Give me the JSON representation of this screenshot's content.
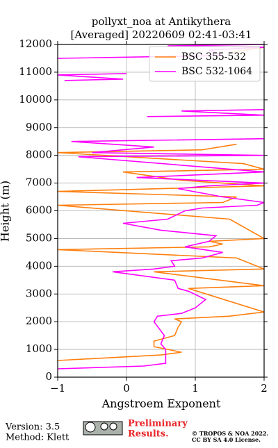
{
  "chart_data": {
    "type": "line",
    "title": "pollyxt_noa at Antikythera",
    "subtitle": "[Averaged] 20220609 02:41-03:41",
    "x_label": "Angstroem Exponent",
    "y_label": "Height (m)",
    "xlim": [
      -1,
      2
    ],
    "ylim": [
      0,
      12000
    ],
    "xticks": [
      {
        "value": -1,
        "label": "−1"
      },
      0,
      1,
      2
    ],
    "yticks": [
      0,
      1000,
      2000,
      3000,
      4000,
      5000,
      6000,
      7000,
      8000,
      9000,
      10000,
      11000,
      12000
    ],
    "grid": true,
    "legend": "upper right",
    "series": [
      {
        "name": "BSC 355-532",
        "color": "#ff7f0e",
        "x": [
          -1,
          0.5,
          0.8,
          0.4,
          0.4,
          0.7,
          0.75,
          0.8,
          0.7,
          1.5,
          2,
          0.9,
          2,
          0.4,
          2,
          1.6,
          -1,
          1.2,
          1.4,
          1.2,
          2,
          1.5,
          -1,
          1.4,
          1.6,
          -1,
          2,
          0.8,
          -0.05,
          2,
          1.7,
          -1,
          1.1,
          1.6,
          null,
          1.5,
          2
        ],
        "y": [
          600,
          800,
          900,
          1100,
          1300,
          1500,
          1800,
          2000,
          2100,
          2200,
          2350,
          3200,
          3300,
          3800,
          3900,
          4300,
          4600,
          4700,
          4800,
          4900,
          5000,
          5700,
          6200,
          6300,
          6500,
          6700,
          6900,
          7100,
          7400,
          7500,
          7700,
          8100,
          8200,
          8400,
          null,
          11700,
          11900
        ]
      },
      {
        "name": "BSC 532-1064",
        "color": "#ff00ff",
        "x": [
          -1,
          0.25,
          0.57,
          0.57,
          0.5,
          0.55,
          0.4,
          0.45,
          0.8,
          1.0,
          1.15,
          0.9,
          0.75,
          0.7,
          -0.2,
          0.4,
          0.7,
          0.65,
          1.1,
          1.4,
          0.85,
          1.2,
          1.3,
          0.5,
          -0.05,
          0.6,
          0.85,
          1.1,
          1.9,
          2,
          1.4,
          0.75,
          1.2,
          2,
          0.15,
          2,
          -0.7,
          2,
          -0.5,
          0.4,
          -0.8,
          2,
          null,
          0.3,
          2,
          0.8,
          2,
          null,
          -0.9,
          -0.05,
          -1,
          0,
          null,
          -1,
          1.4,
          1.2,
          2,
          0.6,
          2
        ],
        "y": [
          300,
          400,
          500,
          1000,
          1200,
          1500,
          2000,
          2200,
          2300,
          2500,
          2800,
          3100,
          3200,
          3500,
          3800,
          3900,
          4000,
          4200,
          4300,
          4500,
          4700,
          4900,
          5100,
          5300,
          5550,
          5700,
          6000,
          6100,
          6200,
          6300,
          6500,
          6800,
          6900,
          7000,
          7200,
          7400,
          7950,
          8000,
          8100,
          8300,
          8500,
          8600,
          null,
          9400,
          9450,
          9600,
          9650,
          null,
          10700,
          10750,
          10900,
          10950,
          null,
          11500,
          11600,
          11800,
          11900,
          11950,
          12000
        ]
      }
    ]
  },
  "footer": {
    "version": "Version: 3.5",
    "method": "Method: Klett",
    "preliminary_1": "Preliminary",
    "preliminary_2": "Results.",
    "copyright_1": "© TROPOS & NOA 2022.",
    "copyright_2": "CC BY SA 4.0 License."
  }
}
